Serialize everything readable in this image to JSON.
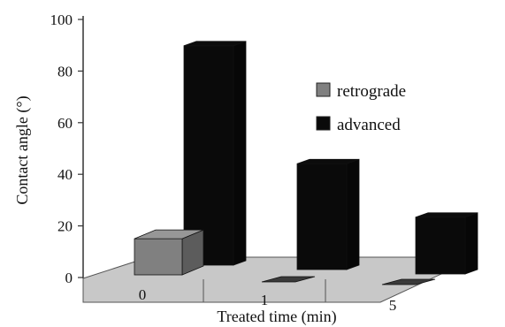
{
  "chart_data": {
    "type": "bar",
    "style": "3d-column",
    "xlabel": "Treated time (min)",
    "ylabel": "Contact angle (°)",
    "ylim": [
      0,
      100
    ],
    "yticks": [
      0,
      20,
      40,
      60,
      80,
      100
    ],
    "categories": [
      "0",
      "1",
      "5"
    ],
    "series": [
      {
        "name": "retrograde",
        "values": [
          14,
          0,
          0
        ],
        "color": "#808080"
      },
      {
        "name": "advanced",
        "values": [
          85,
          41,
          22
        ],
        "color": "#0a0a0a"
      }
    ],
    "legend": "right"
  },
  "colors": {
    "floor": "#c8c8c8",
    "floor_edge": "#555555",
    "axis": "#333333"
  }
}
